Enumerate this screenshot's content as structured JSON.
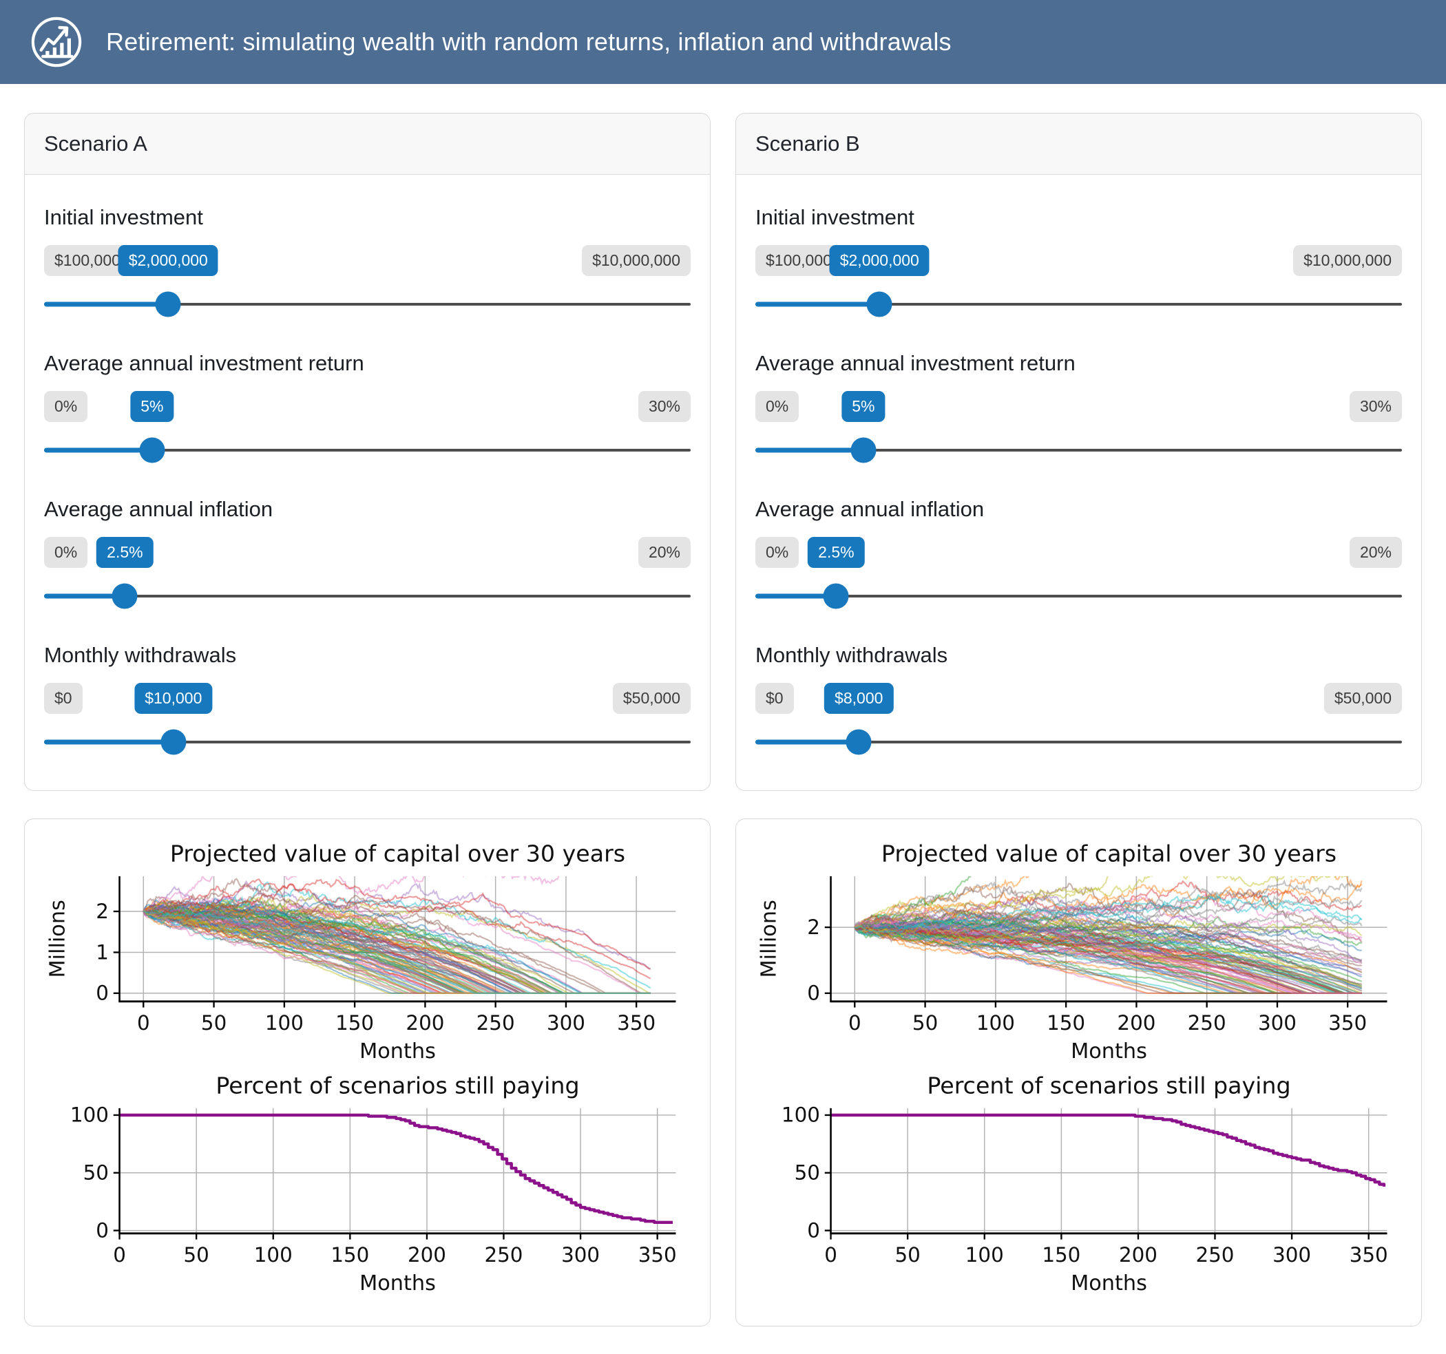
{
  "header": {
    "title": "Retirement: simulating wealth with random returns, inflation and withdrawals",
    "icon": "trending-up-chart-icon"
  },
  "colors": {
    "header_bg": "#4d6d92",
    "accent_blue": "#1778be",
    "track_gray": "#4d4d4d",
    "pill_gray": "#e4e4e4",
    "percent_line": "#8b128b"
  },
  "scenarios": [
    {
      "name": "Scenario A",
      "sliders": [
        {
          "label": "Initial investment",
          "min_label": "$100,000",
          "max_label": "$10,000,000",
          "value_label": "$2,000,000",
          "fraction": 0.192
        },
        {
          "label": "Average annual investment return",
          "min_label": "0%",
          "max_label": "30%",
          "value_label": "5%",
          "fraction": 0.167
        },
        {
          "label": "Average annual inflation",
          "min_label": "0%",
          "max_label": "20%",
          "value_label": "2.5%",
          "fraction": 0.125
        },
        {
          "label": "Monthly withdrawals",
          "min_label": "$0",
          "max_label": "$50,000",
          "value_label": "$10,000",
          "fraction": 0.2
        }
      ]
    },
    {
      "name": "Scenario B",
      "sliders": [
        {
          "label": "Initial investment",
          "min_label": "$100,000",
          "max_label": "$10,000,000",
          "value_label": "$2,000,000",
          "fraction": 0.192
        },
        {
          "label": "Average annual investment return",
          "min_label": "0%",
          "max_label": "30%",
          "value_label": "5%",
          "fraction": 0.167
        },
        {
          "label": "Average annual inflation",
          "min_label": "0%",
          "max_label": "20%",
          "value_label": "2.5%",
          "fraction": 0.125
        },
        {
          "label": "Monthly withdrawals",
          "min_label": "$0",
          "max_label": "$50,000",
          "value_label": "$8,000",
          "fraction": 0.16
        }
      ]
    }
  ],
  "chart_data": [
    {
      "type": "line",
      "variant": "ensemble",
      "scenario": "A",
      "title": "Projected value of capital over 30 years",
      "xlabel": "Months",
      "ylabel": "Millions",
      "xlim": [
        -17,
        378
      ],
      "ylim": [
        -0.2,
        2.86
      ],
      "xticks": [
        0,
        50,
        100,
        150,
        200,
        250,
        300,
        350
      ],
      "yticks": [
        0,
        1,
        2
      ],
      "grid": true,
      "n_paths": 100,
      "months": 360,
      "sim": {
        "seed": 9,
        "initial": 2000000,
        "annual_return": 0.05,
        "monthly_return_sd": 0.015,
        "monthly_withdrawal": 10000,
        "annual_inflation": 0.025
      },
      "alpha": 0.45,
      "palette": [
        "#1f77b4",
        "#ff7f0e",
        "#2ca02c",
        "#d62728",
        "#9467bd",
        "#8c564b",
        "#e377c2",
        "#7f7f7f",
        "#bcbd22",
        "#17becf"
      ]
    },
    {
      "type": "line",
      "variant": "step",
      "scenario": "A",
      "title": "Percent of scenarios still paying",
      "xlabel": "Months",
      "ylabel": "",
      "xlim": [
        0,
        362
      ],
      "ylim": [
        -2.5,
        106
      ],
      "xticks": [
        0,
        50,
        100,
        150,
        200,
        250,
        300,
        350
      ],
      "yticks": [
        0,
        50,
        100
      ],
      "grid": true,
      "color": "#8b128b",
      "x": [
        0,
        150,
        160,
        170,
        178,
        185,
        190,
        196,
        202,
        208,
        214,
        220,
        226,
        232,
        238,
        244,
        250,
        256,
        262,
        268,
        274,
        280,
        286,
        292,
        298,
        304,
        310,
        316,
        322,
        328,
        334,
        342,
        350,
        360
      ],
      "y": [
        100,
        100,
        99.5,
        99,
        97.5,
        96,
        92,
        90,
        89,
        88,
        86,
        83,
        81,
        78,
        74,
        69,
        61,
        53,
        47,
        42,
        38,
        34,
        30,
        26,
        21,
        19,
        17,
        15,
        13,
        11,
        10,
        8,
        7,
        6.5
      ]
    },
    {
      "type": "line",
      "variant": "ensemble",
      "scenario": "B",
      "title": "Projected value of capital over 30 years",
      "xlabel": "Months",
      "ylabel": "Millions",
      "xlim": [
        -17,
        378
      ],
      "ylim": [
        -0.25,
        3.55
      ],
      "xticks": [
        0,
        50,
        100,
        150,
        200,
        250,
        300,
        350
      ],
      "yticks": [
        0,
        2
      ],
      "grid": true,
      "n_paths": 100,
      "months": 360,
      "sim": {
        "seed": 23,
        "initial": 2000000,
        "annual_return": 0.05,
        "monthly_return_sd": 0.017,
        "monthly_withdrawal": 8000,
        "annual_inflation": 0.025
      },
      "alpha": 0.45,
      "palette": [
        "#1f77b4",
        "#ff7f0e",
        "#2ca02c",
        "#d62728",
        "#9467bd",
        "#8c564b",
        "#e377c2",
        "#7f7f7f",
        "#bcbd22",
        "#17becf"
      ]
    },
    {
      "type": "line",
      "variant": "step",
      "scenario": "B",
      "title": "Percent of scenarios still paying",
      "xlabel": "Months",
      "ylabel": "",
      "xlim": [
        0,
        362
      ],
      "ylim": [
        -2.5,
        106
      ],
      "xticks": [
        0,
        50,
        100,
        150,
        200,
        250,
        300,
        350
      ],
      "yticks": [
        0,
        50,
        100
      ],
      "grid": true,
      "color": "#8b128b",
      "x": [
        0,
        190,
        200,
        206,
        212,
        218,
        224,
        230,
        236,
        242,
        248,
        254,
        260,
        266,
        272,
        278,
        284,
        290,
        296,
        302,
        308,
        314,
        320,
        326,
        332,
        338,
        344,
        350,
        356,
        360
      ],
      "y": [
        100,
        100,
        99,
        98,
        97,
        96,
        94,
        91,
        89,
        87,
        85,
        83,
        80,
        77,
        74,
        71,
        69,
        66,
        64,
        62,
        61,
        58,
        55,
        53,
        52,
        50,
        47,
        44,
        41,
        38
      ]
    }
  ]
}
